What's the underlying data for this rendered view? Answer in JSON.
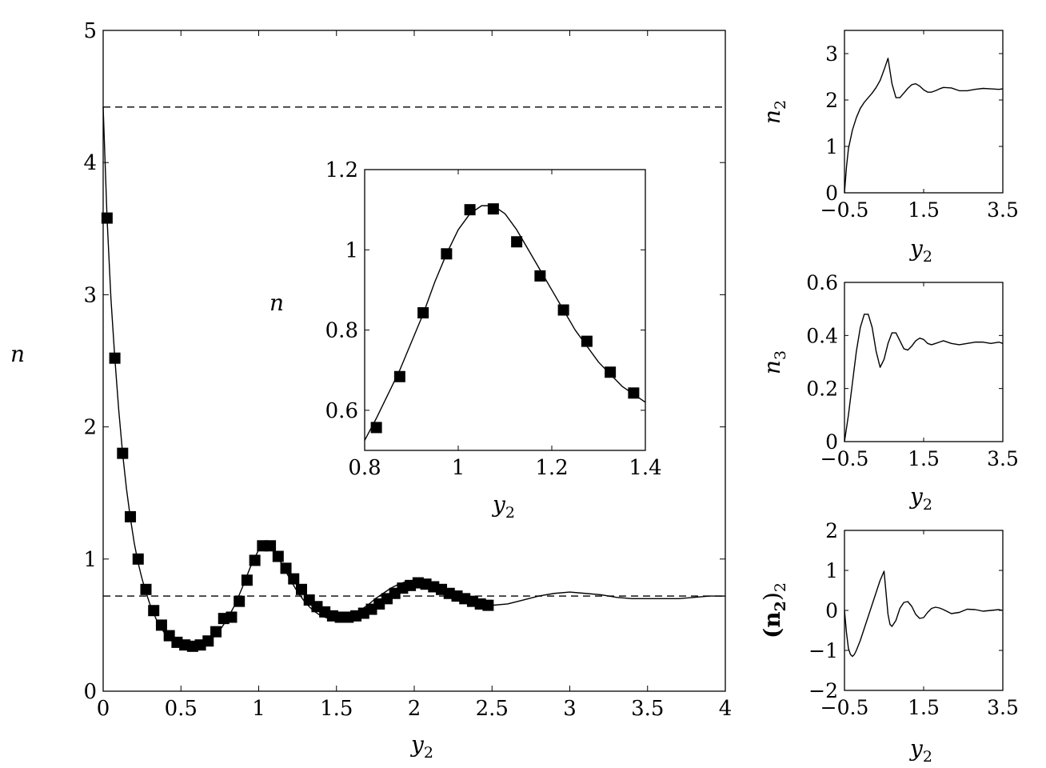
{
  "chart_data": [
    {
      "id": "main",
      "type": "line",
      "title": "",
      "xlabel": "y",
      "xlabel_sub": "2",
      "ylabel": "n",
      "xlim": [
        0,
        4
      ],
      "ylim": [
        0,
        5
      ],
      "xticks": [
        0,
        0.5,
        1,
        1.5,
        2,
        2.5,
        3,
        3.5,
        4
      ],
      "xtick_labels": [
        "0",
        "0.5",
        "1",
        "1.5",
        "2",
        "2.5",
        "3",
        "3.5",
        "4"
      ],
      "yticks": [
        0,
        1,
        2,
        3,
        4,
        5
      ],
      "ytick_labels": [
        "0",
        "1",
        "2",
        "3",
        "4",
        "5"
      ],
      "reference_lines": [
        4.42,
        0.72
      ],
      "series": [
        {
          "style": "solid-line",
          "x": [
            0.0,
            0.025,
            0.05,
            0.075,
            0.1,
            0.125,
            0.15,
            0.175,
            0.2,
            0.225,
            0.25,
            0.275,
            0.3,
            0.35,
            0.4,
            0.45,
            0.5,
            0.55,
            0.6,
            0.65,
            0.7,
            0.75,
            0.8,
            0.85,
            0.9,
            0.95,
            1.0,
            1.05,
            1.1,
            1.15,
            1.2,
            1.25,
            1.3,
            1.35,
            1.4,
            1.45,
            1.5,
            1.55,
            1.6,
            1.65,
            1.7,
            1.75,
            1.8,
            1.85,
            1.9,
            1.95,
            2.0,
            2.05,
            2.1,
            2.15,
            2.2,
            2.25,
            2.3,
            2.35,
            2.4,
            2.45,
            2.5,
            2.6,
            2.7,
            2.8,
            2.9,
            3.0,
            3.1,
            3.2,
            3.3,
            3.4,
            3.5,
            3.6,
            3.7,
            3.8,
            3.9,
            4.0
          ],
          "y": [
            4.42,
            3.58,
            2.97,
            2.52,
            2.13,
            1.8,
            1.53,
            1.31,
            1.12,
            0.97,
            0.85,
            0.75,
            0.66,
            0.52,
            0.43,
            0.38,
            0.35,
            0.34,
            0.34,
            0.36,
            0.4,
            0.46,
            0.55,
            0.66,
            0.8,
            0.95,
            1.07,
            1.11,
            1.06,
            0.96,
            0.85,
            0.75,
            0.67,
            0.61,
            0.57,
            0.55,
            0.55,
            0.56,
            0.58,
            0.61,
            0.65,
            0.7,
            0.74,
            0.78,
            0.81,
            0.83,
            0.83,
            0.82,
            0.8,
            0.77,
            0.74,
            0.71,
            0.68,
            0.66,
            0.65,
            0.65,
            0.65,
            0.66,
            0.69,
            0.72,
            0.74,
            0.75,
            0.74,
            0.73,
            0.71,
            0.7,
            0.7,
            0.7,
            0.7,
            0.71,
            0.72,
            0.72
          ]
        },
        {
          "style": "square-markers",
          "x": [
            0.025,
            0.075,
            0.125,
            0.175,
            0.225,
            0.275,
            0.325,
            0.375,
            0.425,
            0.475,
            0.525,
            0.575,
            0.625,
            0.675,
            0.725,
            0.775,
            0.825,
            0.875,
            0.925,
            0.975,
            1.025,
            1.075,
            1.125,
            1.175,
            1.225,
            1.275,
            1.325,
            1.375,
            1.425,
            1.475,
            1.525,
            1.575,
            1.625,
            1.675,
            1.725,
            1.775,
            1.825,
            1.875,
            1.925,
            1.975,
            2.025,
            2.075,
            2.125,
            2.175,
            2.225,
            2.275,
            2.325,
            2.375,
            2.425,
            2.475
          ],
          "y": [
            3.58,
            2.52,
            1.8,
            1.32,
            1.0,
            0.77,
            0.61,
            0.5,
            0.42,
            0.37,
            0.35,
            0.34,
            0.35,
            0.38,
            0.45,
            0.55,
            0.56,
            0.68,
            0.84,
            0.99,
            1.1,
            1.1,
            1.02,
            0.93,
            0.85,
            0.77,
            0.69,
            0.64,
            0.6,
            0.57,
            0.56,
            0.56,
            0.57,
            0.59,
            0.62,
            0.66,
            0.7,
            0.74,
            0.78,
            0.8,
            0.82,
            0.81,
            0.79,
            0.77,
            0.74,
            0.72,
            0.7,
            0.68,
            0.66,
            0.65
          ]
        }
      ]
    },
    {
      "id": "inset",
      "type": "line",
      "title": "",
      "xlabel": "y",
      "xlabel_sub": "2",
      "ylabel": "n",
      "xlim": [
        0.8,
        1.4
      ],
      "ylim": [
        0.5,
        1.2
      ],
      "xticks": [
        0.8,
        1.0,
        1.2,
        1.4
      ],
      "xtick_labels": [
        "0.8",
        "1",
        "1.2",
        "1.4"
      ],
      "yticks": [
        0.6,
        0.8,
        1.0,
        1.2
      ],
      "ytick_labels": [
        "0.6",
        "0.8",
        "1",
        "1.2"
      ],
      "series": [
        {
          "style": "solid-line",
          "x": [
            0.8,
            0.825,
            0.85,
            0.875,
            0.9,
            0.925,
            0.95,
            0.975,
            1.0,
            1.025,
            1.05,
            1.075,
            1.1,
            1.125,
            1.15,
            1.175,
            1.2,
            1.225,
            1.25,
            1.275,
            1.3,
            1.325,
            1.35,
            1.375,
            1.4
          ],
          "y": [
            0.525,
            0.58,
            0.64,
            0.7,
            0.77,
            0.84,
            0.92,
            0.99,
            1.05,
            1.09,
            1.11,
            1.11,
            1.09,
            1.05,
            1.0,
            0.95,
            0.9,
            0.85,
            0.8,
            0.76,
            0.72,
            0.69,
            0.66,
            0.64,
            0.62
          ]
        },
        {
          "style": "square-markers",
          "x": [
            0.825,
            0.875,
            0.925,
            0.975,
            1.025,
            1.075,
            1.125,
            1.175,
            1.225,
            1.275,
            1.325,
            1.375
          ],
          "y": [
            0.557,
            0.684,
            0.843,
            0.99,
            1.1,
            1.102,
            1.02,
            0.935,
            0.85,
            0.772,
            0.695,
            0.643
          ]
        }
      ]
    },
    {
      "id": "right-top",
      "type": "line",
      "title": "",
      "xlabel": "y",
      "xlabel_sub": "2",
      "ylabel": "n",
      "ylabel_sub": "2",
      "xlim": [
        -0.5,
        3.5
      ],
      "ylim": [
        0,
        3.5
      ],
      "xticks": [
        -0.5,
        1.5,
        3.5
      ],
      "xtick_labels": [
        "−0.5",
        "1.5",
        "3.5"
      ],
      "yticks": [
        0,
        1,
        2,
        3
      ],
      "ytick_labels": [
        "0",
        "1",
        "2",
        "3"
      ],
      "series": [
        {
          "style": "solid-line",
          "x": [
            -0.5,
            -0.45,
            -0.4,
            -0.3,
            -0.2,
            -0.1,
            0.0,
            0.1,
            0.2,
            0.3,
            0.4,
            0.5,
            0.6,
            0.7,
            0.8,
            0.9,
            1.0,
            1.1,
            1.2,
            1.3,
            1.4,
            1.5,
            1.6,
            1.7,
            1.8,
            1.9,
            2.0,
            2.2,
            2.4,
            2.6,
            2.8,
            3.0,
            3.2,
            3.4,
            3.5
          ],
          "y": [
            0.0,
            0.55,
            0.95,
            1.35,
            1.62,
            1.82,
            1.95,
            2.05,
            2.15,
            2.27,
            2.42,
            2.65,
            2.9,
            2.35,
            2.05,
            2.05,
            2.15,
            2.25,
            2.33,
            2.35,
            2.3,
            2.22,
            2.17,
            2.17,
            2.2,
            2.24,
            2.27,
            2.26,
            2.2,
            2.2,
            2.23,
            2.25,
            2.24,
            2.23,
            2.24
          ]
        }
      ]
    },
    {
      "id": "right-middle",
      "type": "line",
      "title": "",
      "xlabel": "y",
      "xlabel_sub": "2",
      "ylabel": "n",
      "ylabel_sub": "3",
      "xlim": [
        -0.5,
        3.5
      ],
      "ylim": [
        0,
        0.6
      ],
      "xticks": [
        -0.5,
        1.5,
        3.5
      ],
      "xtick_labels": [
        "−0.5",
        "1.5",
        "3.5"
      ],
      "yticks": [
        0,
        0.2,
        0.4,
        0.6
      ],
      "ytick_labels": [
        "0",
        "0.2",
        "0.4",
        "0.6"
      ],
      "series": [
        {
          "style": "solid-line",
          "x": [
            -0.5,
            -0.4,
            -0.3,
            -0.2,
            -0.1,
            0.0,
            0.1,
            0.2,
            0.3,
            0.4,
            0.5,
            0.6,
            0.7,
            0.8,
            0.9,
            1.0,
            1.1,
            1.2,
            1.3,
            1.4,
            1.5,
            1.6,
            1.7,
            1.8,
            1.9,
            2.0,
            2.2,
            2.4,
            2.6,
            2.8,
            3.0,
            3.2,
            3.4,
            3.5
          ],
          "y": [
            0.0,
            0.1,
            0.22,
            0.34,
            0.43,
            0.48,
            0.48,
            0.43,
            0.34,
            0.28,
            0.31,
            0.37,
            0.41,
            0.41,
            0.38,
            0.35,
            0.345,
            0.36,
            0.38,
            0.39,
            0.385,
            0.37,
            0.365,
            0.37,
            0.375,
            0.38,
            0.37,
            0.365,
            0.37,
            0.375,
            0.375,
            0.37,
            0.375,
            0.37
          ]
        }
      ]
    },
    {
      "id": "right-bottom",
      "type": "line",
      "title": "",
      "xlabel": "y",
      "xlabel_sub": "2",
      "ylabel": "(n",
      "ylabel_sub": "2",
      "ylabel_close": ")",
      "ylabel_close_sub": "2",
      "xlim": [
        -0.5,
        3.5
      ],
      "ylim": [
        -2,
        2
      ],
      "xticks": [
        -0.5,
        1.5,
        3.5
      ],
      "xtick_labels": [
        "−0.5",
        "1.5",
        "3.5"
      ],
      "yticks": [
        -2,
        -1,
        0,
        1,
        2
      ],
      "ytick_labels": [
        "−2",
        "−1",
        "0",
        "1",
        "2"
      ],
      "series": [
        {
          "style": "solid-line",
          "x": [
            -0.5,
            -0.45,
            -0.4,
            -0.35,
            -0.3,
            -0.25,
            -0.2,
            -0.1,
            0.0,
            0.1,
            0.2,
            0.3,
            0.4,
            0.5,
            0.6,
            0.65,
            0.7,
            0.8,
            0.9,
            1.0,
            1.1,
            1.2,
            1.3,
            1.4,
            1.5,
            1.6,
            1.7,
            1.8,
            1.9,
            2.0,
            2.2,
            2.4,
            2.6,
            2.8,
            3.0,
            3.2,
            3.4,
            3.5
          ],
          "y": [
            0.0,
            -0.55,
            -0.95,
            -1.1,
            -1.15,
            -1.1,
            -1.0,
            -0.75,
            -0.45,
            -0.15,
            0.15,
            0.45,
            0.75,
            0.98,
            -0.1,
            -0.35,
            -0.4,
            -0.25,
            0.05,
            0.2,
            0.22,
            0.1,
            -0.1,
            -0.2,
            -0.18,
            -0.05,
            0.05,
            0.08,
            0.06,
            0.02,
            -0.08,
            -0.05,
            0.03,
            0.02,
            -0.02,
            0.0,
            0.02,
            0.0
          ]
        }
      ]
    }
  ]
}
